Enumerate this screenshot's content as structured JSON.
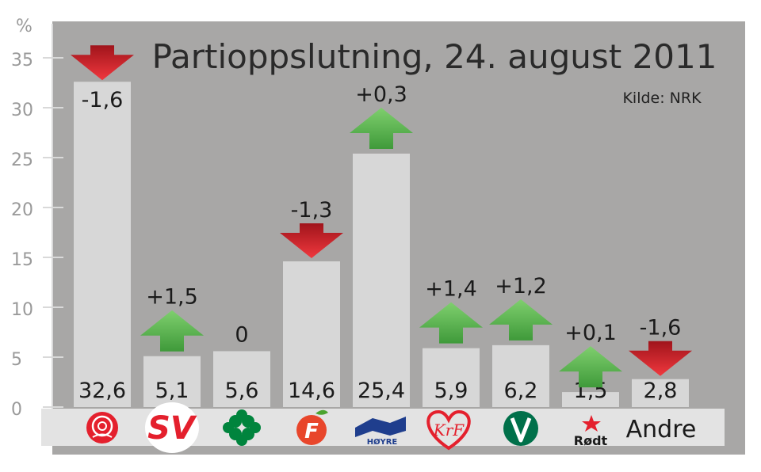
{
  "chart_data": {
    "type": "bar",
    "title": "Partioppslutning, 24. august 2011",
    "source": "Kilde: NRK",
    "yunit": "%",
    "ylim": [
      0,
      37
    ],
    "yticks": [
      "0",
      "5",
      "10",
      "15",
      "20",
      "25",
      "30",
      "35"
    ],
    "categories": [
      "Ap",
      "SV",
      "Sp",
      "FrP",
      "Høyre",
      "KrF",
      "V",
      "Rødt",
      "Andre"
    ],
    "values": [
      32.6,
      5.1,
      5.6,
      14.6,
      25.4,
      5.9,
      6.2,
      1.5,
      2.8
    ],
    "value_labels": [
      "32,6",
      "5,1",
      "5,6",
      "14,6",
      "25,4",
      "5,9",
      "6,2",
      "1,5",
      "2,8"
    ],
    "changes": [
      -1.6,
      1.5,
      0,
      -1.3,
      0.3,
      1.4,
      1.2,
      0.1,
      -1.6
    ],
    "change_labels": [
      "-1,6",
      "+1,5",
      "0",
      "-1,3",
      "+0,3",
      "+1,4",
      "+1,2",
      "+0,1",
      "-1,6"
    ],
    "logo_texts": {
      "SV": "SV",
      "Høyre": "HØYRE",
      "KrF": "KrF",
      "Rødt": "Rødt",
      "Andre": "Andre"
    },
    "colors": {
      "background": "#a8a7a6",
      "bar": "#d7d7d7",
      "up_arrow": "#3f9a3a",
      "down_arrow": "#d42027",
      "ap": "#e4202d",
      "sv": "#e4202d",
      "sp": "#00843d",
      "frp": "#e8462b",
      "hoyre": "#1f3e8d",
      "krf": "#e4202d",
      "venstre": "#00704a",
      "rodt": "#e4202d"
    },
    "grid": false,
    "legend": "none"
  }
}
